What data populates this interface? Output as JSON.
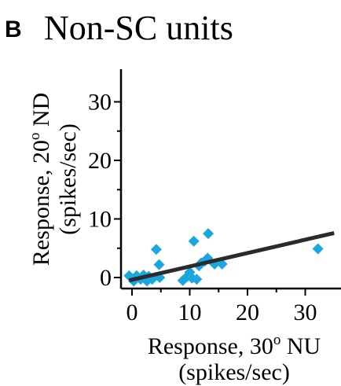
{
  "panel_letter": "B",
  "chart_data": {
    "type": "scatter",
    "title": "Non-SC units",
    "xlabel": {
      "line1_pre": "Response, 30",
      "line1_sup": "o",
      "line1_post": " NU",
      "line2": "(spikes/sec)"
    },
    "ylabel": {
      "line1_pre": "Response, 20",
      "line1_sup": "o",
      "line1_post": " ND",
      "line2": "(spikes/sec)"
    },
    "xlim": [
      -1.5,
      35
    ],
    "ylim": [
      -1.5,
      35
    ],
    "xticks": [
      0,
      10,
      20,
      30
    ],
    "yticks": [
      0,
      10,
      20,
      30
    ],
    "xtick_labels": [
      "0",
      "10",
      "20",
      "30"
    ],
    "ytick_labels": [
      "0",
      "10",
      "20",
      "30"
    ],
    "point_color": "#1aa7e0",
    "line_color": "#2b2b2b",
    "grid": false,
    "points": [
      {
        "x": -0.5,
        "y": 0.3
      },
      {
        "x": 0.3,
        "y": -0.6
      },
      {
        "x": 0.8,
        "y": 0.3
      },
      {
        "x": 1.5,
        "y": -0.3
      },
      {
        "x": 2.0,
        "y": 0.4
      },
      {
        "x": 2.6,
        "y": -0.6
      },
      {
        "x": 2.9,
        "y": 0.2
      },
      {
        "x": 3.5,
        "y": -0.3
      },
      {
        "x": 4.2,
        "y": 4.8
      },
      {
        "x": 4.7,
        "y": 2.2
      },
      {
        "x": 4.8,
        "y": 0.0
      },
      {
        "x": 8.8,
        "y": -0.5
      },
      {
        "x": 9.6,
        "y": 0.2
      },
      {
        "x": 10.0,
        "y": 0.9
      },
      {
        "x": 10.4,
        "y": -0.1
      },
      {
        "x": 10.7,
        "y": 6.2
      },
      {
        "x": 11.2,
        "y": -0.3
      },
      {
        "x": 11.6,
        "y": 2.0
      },
      {
        "x": 12.0,
        "y": 2.5
      },
      {
        "x": 12.6,
        "y": 2.8
      },
      {
        "x": 13.1,
        "y": 3.3
      },
      {
        "x": 13.2,
        "y": 7.5
      },
      {
        "x": 14.3,
        "y": 2.3
      },
      {
        "x": 15.6,
        "y": 2.3
      },
      {
        "x": 32.2,
        "y": 4.9
      }
    ],
    "fit_line": {
      "x": [
        -0.5,
        35
      ],
      "y": [
        -0.5,
        7.6
      ]
    }
  }
}
